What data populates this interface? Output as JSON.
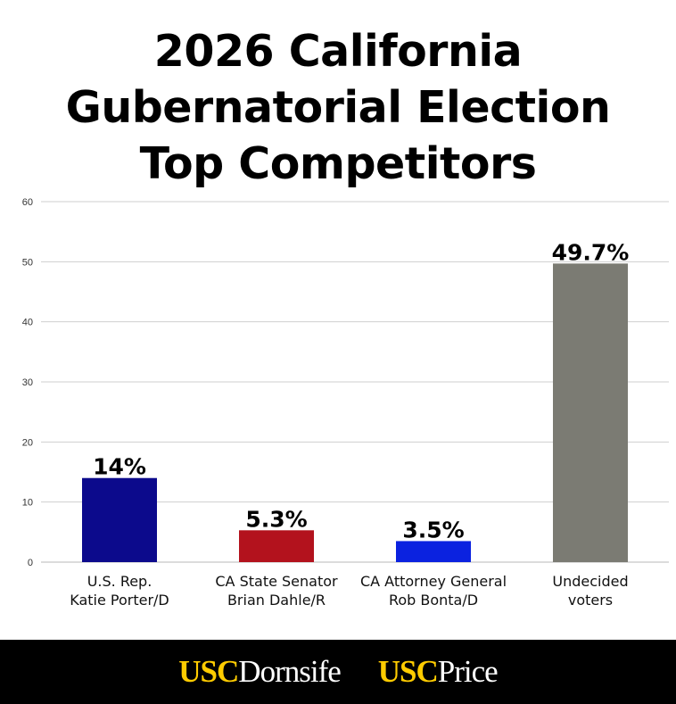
{
  "title": {
    "line1": "2026 California",
    "line2": "Gubernatorial Election",
    "line3": "Top Competitors"
  },
  "chart_data": {
    "type": "bar",
    "categories": [
      [
        "U.S. Rep.",
        "Katie Porter/D"
      ],
      [
        "CA State Senator",
        "Brian Dahle/R"
      ],
      [
        "CA Attorney General",
        "Rob Bonta/D"
      ],
      [
        "Undecided",
        "voters"
      ]
    ],
    "values": [
      14,
      5.3,
      3.5,
      49.7
    ],
    "data_labels": [
      "14%",
      "5.3%",
      "3.5%",
      "49.7%"
    ],
    "colors": [
      "#0c0a8c",
      "#b3121d",
      "#0b22e0",
      "#7b7b73"
    ],
    "ylim": [
      0,
      60
    ],
    "yticks": [
      "0",
      "10",
      "20",
      "30",
      "40",
      "50",
      "60"
    ],
    "grid": true,
    "xlabel": "",
    "ylabel": ""
  },
  "footer": {
    "logos": [
      {
        "prefix": "USC",
        "name": "Dornsife"
      },
      {
        "prefix": "USC",
        "name": "Price"
      }
    ]
  }
}
